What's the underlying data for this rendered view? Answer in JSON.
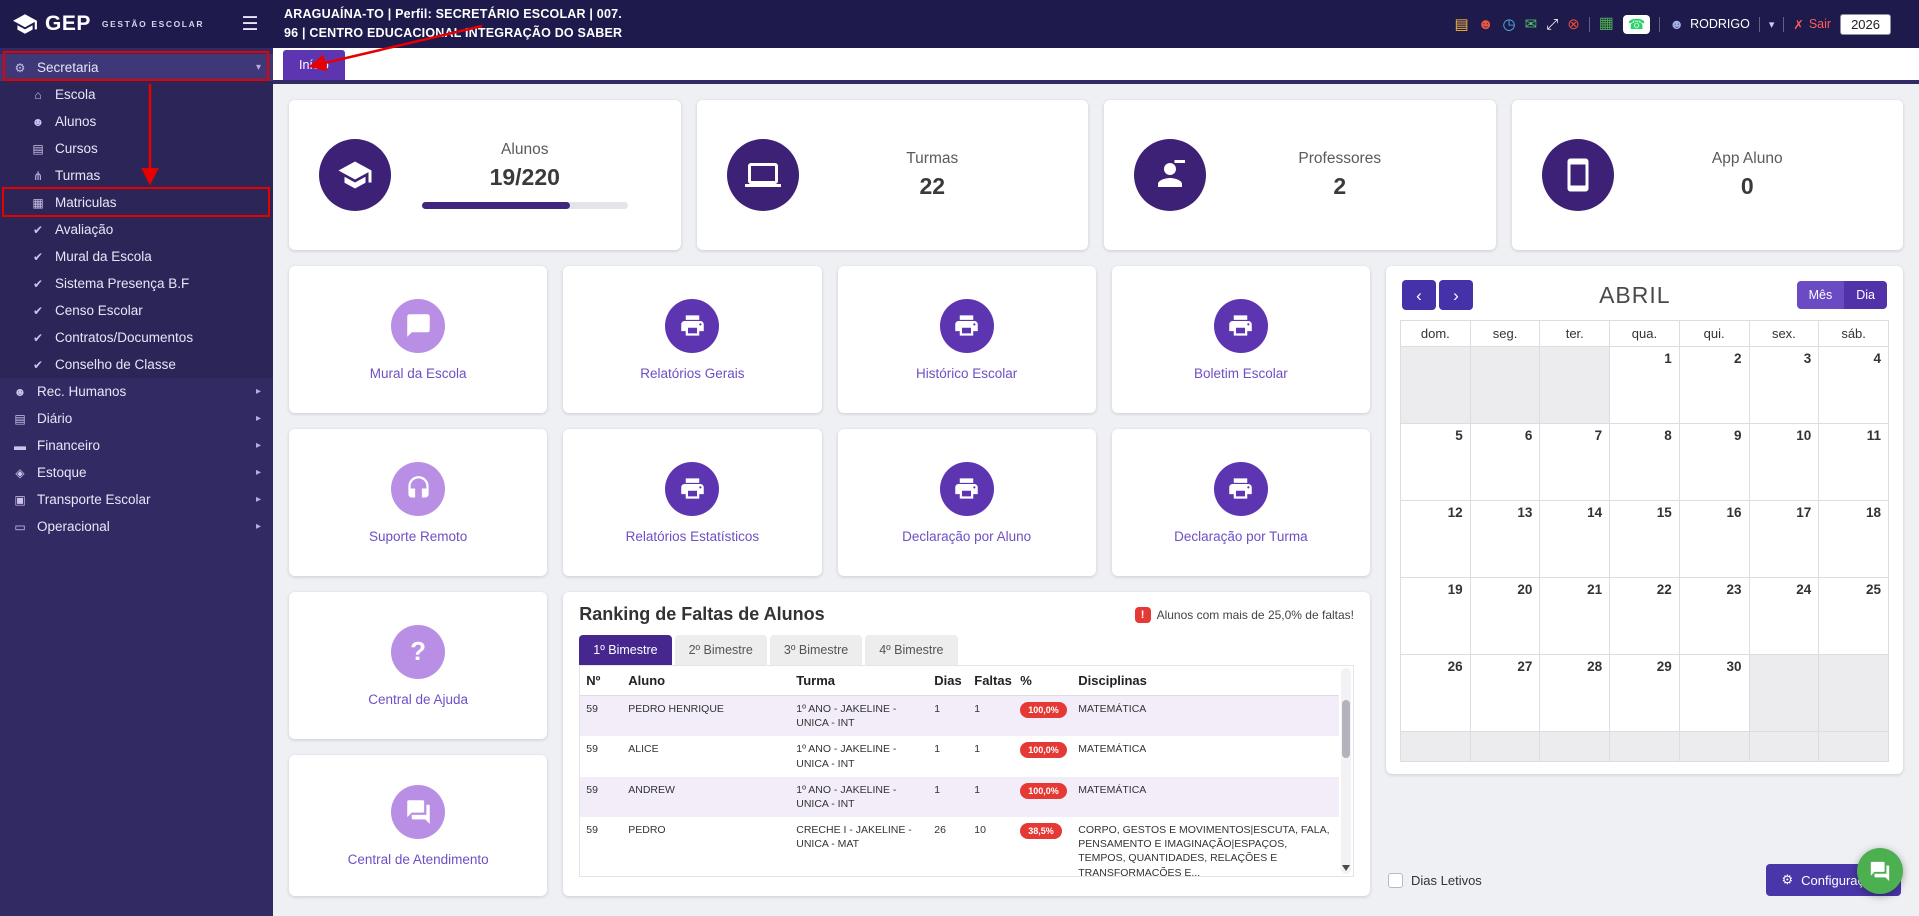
{
  "colors": {
    "topbar_bg": "#1e1b4c",
    "sidebar_bg": "#322b63",
    "accent_purple": "#5e35b1",
    "dark_purple_icon": "#3d2177",
    "light_purple_icon": "#b98fe6",
    "danger_red": "#e53935",
    "annotation_red": "#e60000",
    "whatsapp_green": "#25d366",
    "fab_green": "#4caf50"
  },
  "topbar": {
    "logo_name": "GEP",
    "logo_subtitle": "GESTÃO ESCOLAR",
    "menu_icon": "☰",
    "title_line1": "ARAGUAÍNA-TO | Perfil: SECRETÁRIO ESCOLAR | 007.",
    "title_line2": "96 | CENTRO EDUCACIONAL INTEGRAÇÃO DO SABER",
    "icons": {
      "briefcase": "▤",
      "users": "☻",
      "clock": "◷",
      "chat": "✉",
      "fullscreen": "⤢",
      "close": "⊗",
      "grid": "▦",
      "whatsapp": "☎"
    },
    "user_icon": "☻",
    "user": "RODRIGO",
    "caret": "▾",
    "logout_icon": "✗",
    "logout_label": "Sair",
    "year": "2026"
  },
  "tab": {
    "label": "Início"
  },
  "sidebar": {
    "items": [
      {
        "label": "Secretaria",
        "glyph": "⚙",
        "caret": "▾"
      },
      {
        "label": "Escola",
        "glyph": "⌂"
      },
      {
        "label": "Alunos",
        "glyph": "☻"
      },
      {
        "label": "Cursos",
        "glyph": "▤"
      },
      {
        "label": "Turmas",
        "glyph": "⋔"
      },
      {
        "label": "Matriculas",
        "glyph": "▦"
      },
      {
        "label": "Avaliação",
        "glyph": "✔"
      },
      {
        "label": "Mural da Escola",
        "glyph": "✔"
      },
      {
        "label": "Sistema Presença B.F",
        "glyph": "✔"
      },
      {
        "label": "Censo Escolar",
        "glyph": "✔"
      },
      {
        "label": "Contratos/Documentos",
        "glyph": "✔"
      },
      {
        "label": "Conselho de Classe",
        "glyph": "✔"
      },
      {
        "label": "Rec. Humanos",
        "glyph": "☻",
        "caret": "▸"
      },
      {
        "label": "Diário",
        "glyph": "▤",
        "caret": "▸"
      },
      {
        "label": "Financeiro",
        "glyph": "▬",
        "caret": "▸"
      },
      {
        "label": "Estoque",
        "glyph": "◈",
        "caret": "▸"
      },
      {
        "label": "Transporte Escolar",
        "glyph": "▣",
        "caret": "▸"
      },
      {
        "label": "Operacional",
        "glyph": "▭",
        "caret": "▸"
      }
    ]
  },
  "stats": [
    {
      "label": "Alunos",
      "value": "19/220",
      "progress_pct": 72,
      "icon": "graduation-cap-icon"
    },
    {
      "label": "Turmas",
      "value": "22",
      "icon": "laptop-icon"
    },
    {
      "label": "Professores",
      "value": "2",
      "icon": "teacher-icon"
    },
    {
      "label": "App Aluno",
      "value": "0",
      "icon": "smartphone-icon"
    }
  ],
  "action_cards": [
    {
      "label": "Mural da Escola",
      "icon": "chat-icon"
    },
    {
      "label": "Relatórios Gerais",
      "icon": "printer-icon"
    },
    {
      "label": "Histórico Escolar",
      "icon": "printer-icon"
    },
    {
      "label": "Boletim Escolar",
      "icon": "printer-icon"
    },
    {
      "label": "Suporte Remoto",
      "icon": "headset-icon"
    },
    {
      "label": "Relatórios Estatísticos",
      "icon": "printer-icon"
    },
    {
      "label": "Declaração por Aluno",
      "icon": "printer-icon"
    },
    {
      "label": "Declaração por Turma",
      "icon": "printer-icon"
    },
    {
      "label": "Central de Ajuda",
      "icon": "question-icon",
      "glyph": "?"
    },
    {
      "label": "Central de Atendimento",
      "icon": "chat-bubbles-icon"
    }
  ],
  "ranking": {
    "title": "Ranking de Faltas de Alunos",
    "warning_icon": "!",
    "warning": "Alunos com mais de 25,0% de faltas!",
    "tabs": [
      "1º Bimestre",
      "2º Bimestre",
      "3º Bimestre",
      "4º Bimestre"
    ],
    "active_tab": "1º Bimestre",
    "headers": [
      "Nº",
      "Aluno",
      "Turma",
      "Dias",
      "Faltas",
      "%",
      "Disciplinas"
    ],
    "rows": [
      {
        "n": "59",
        "aluno": "PEDRO HENRIQUE",
        "turma": "1º ANO - JAKELINE - UNICA - INT",
        "dias": "1",
        "faltas": "1",
        "pct": "100,0%",
        "disciplinas": "MATEMÁTICA"
      },
      {
        "n": "59",
        "aluno": "ALICE",
        "turma": "1º ANO - JAKELINE - UNICA - INT",
        "dias": "1",
        "faltas": "1",
        "pct": "100,0%",
        "disciplinas": "MATEMÁTICA"
      },
      {
        "n": "59",
        "aluno": "ANDREW",
        "turma": "1º ANO - JAKELINE - UNICA - INT",
        "dias": "1",
        "faltas": "1",
        "pct": "100,0%",
        "disciplinas": "MATEMÁTICA"
      },
      {
        "n": "59",
        "aluno": "PEDRO",
        "turma": "CRECHE I - JAKELINE - UNICA - MAT",
        "dias": "26",
        "faltas": "10",
        "pct": "38,5%",
        "disciplinas": "CORPO, GESTOS E MOVIMENTOS|ESCUTA, FALA, PENSAMENTO E IMAGINAÇÃO|ESPAÇOS, TEMPOS, QUANTIDADES, RELAÇÕES E TRANSFORMAÇÕES E..."
      }
    ]
  },
  "calendar": {
    "month": "ABRIL",
    "nav_prev": "‹",
    "nav_next": "›",
    "view_month": "Mês",
    "view_day": "Dia",
    "weekdays": [
      "dom.",
      "seg.",
      "ter.",
      "qua.",
      "qui.",
      "sex.",
      "sáb."
    ],
    "weeks": [
      [
        "",
        "",
        "",
        "1",
        "2",
        "3",
        "4"
      ],
      [
        "5",
        "6",
        "7",
        "8",
        "9",
        "10",
        "11"
      ],
      [
        "12",
        "13",
        "14",
        "15",
        "16",
        "17",
        "18"
      ],
      [
        "19",
        "20",
        "21",
        "22",
        "23",
        "24",
        "25"
      ],
      [
        "26",
        "27",
        "28",
        "29",
        "30",
        "",
        ""
      ],
      [
        "",
        "",
        "",
        "",
        "",
        "",
        ""
      ]
    ]
  },
  "footer": {
    "dias_letivos_label": "Dias Letivos",
    "config_icon": "⚙",
    "config_label": "Configurações"
  }
}
